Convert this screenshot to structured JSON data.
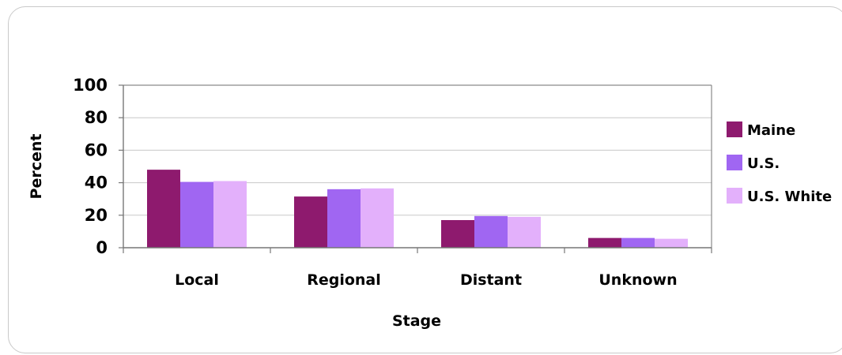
{
  "chart_data": {
    "type": "bar",
    "title": "",
    "xlabel": "Stage",
    "ylabel": "Percent",
    "ylim": [
      0,
      100
    ],
    "yticks": [
      0,
      20,
      40,
      60,
      80,
      100
    ],
    "grid": true,
    "legend_position": "right",
    "categories": [
      "Local",
      "Regional",
      "Distant",
      "Unknown"
    ],
    "series": [
      {
        "name": "Maine",
        "color": "#8e1a6e",
        "values": [
          48,
          31.5,
          17,
          6
        ]
      },
      {
        "name": "U.S.",
        "color": "#a066f2",
        "values": [
          40.5,
          36,
          19.5,
          6
        ]
      },
      {
        "name": "U.S. White",
        "color": "#e3b0fb",
        "values": [
          41,
          36.5,
          19,
          5.5
        ]
      }
    ]
  }
}
